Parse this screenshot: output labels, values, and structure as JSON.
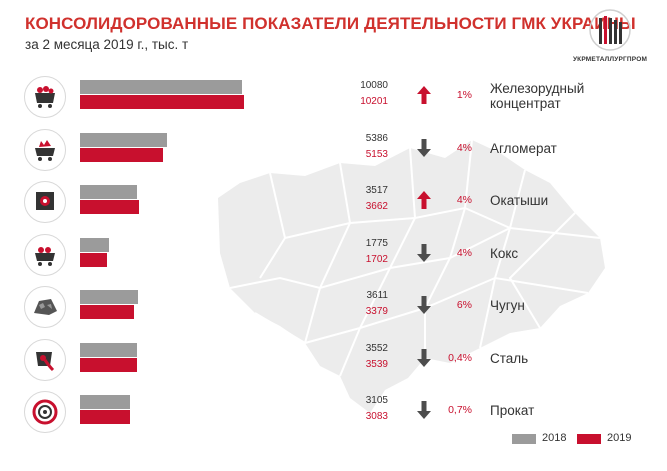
{
  "header": {
    "title": "КОНСОЛИДОРОВАННЫЕ ПОКАЗАТЕЛИ ДЕЯТЕЛЬНОСТИ ГМК УКРАИНЫ",
    "subtitle": "за 2 месяца 2019 г., тыс. т",
    "logo_text": "УКРМЕТАЛЛУРГПРОМ"
  },
  "colors": {
    "y2018": "#9b9b9b",
    "y2019": "#c8102e",
    "arrow_up": "#c8102e",
    "arrow_down": "#4d4d4d",
    "map": "#ececec"
  },
  "chart_data": {
    "type": "bar",
    "orientation": "horizontal",
    "categories": [
      "Железорудный концентрат",
      "Агломерат",
      "Окатыши",
      "Кокс",
      "Чугун",
      "Сталь",
      "Прокат"
    ],
    "series": [
      {
        "name": "2018",
        "values": [
          10080,
          5386,
          3517,
          1775,
          3611,
          3552,
          3105
        ]
      },
      {
        "name": "2019",
        "values": [
          10201,
          5153,
          3662,
          1702,
          3379,
          3539,
          3083
        ]
      }
    ],
    "changes": [
      "1%",
      "4%",
      "4%",
      "4%",
      "6%",
      "0,4%",
      "0,7%"
    ],
    "directions": [
      "up",
      "down",
      "up",
      "down",
      "down",
      "down",
      "down"
    ],
    "icons": [
      "ore-cart-icon",
      "sinter-cart-icon",
      "pellet-machine-icon",
      "coke-cart-icon",
      "pig-iron-icon",
      "steel-ladle-icon",
      "rolled-coil-icon"
    ],
    "legend": {
      "items": [
        "2018",
        "2019"
      ],
      "placement": "bottom-right"
    }
  }
}
